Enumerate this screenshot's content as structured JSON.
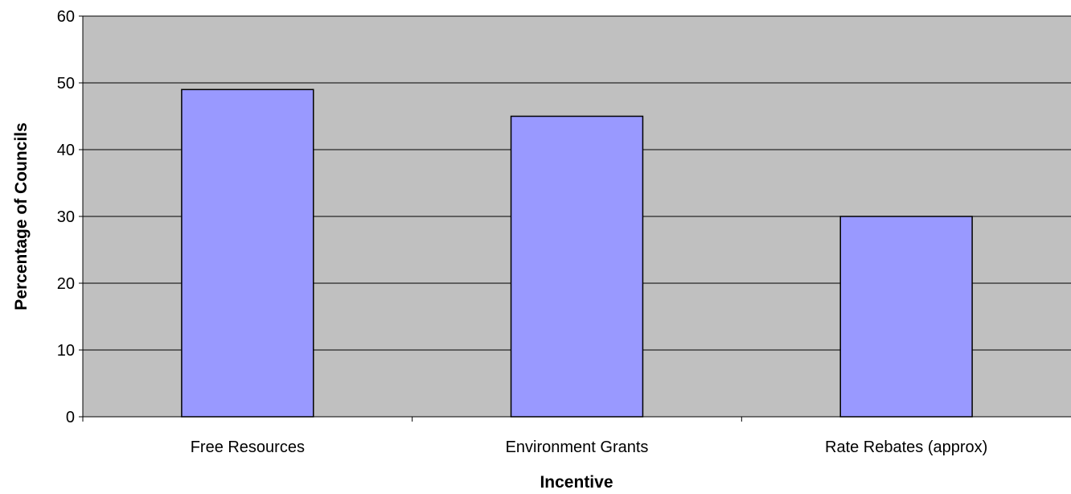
{
  "chart_data": {
    "type": "bar",
    "title": "",
    "xlabel": "Incentive",
    "ylabel": "Percentage of Councils",
    "categories": [
      "Free Resources",
      "Environment Grants",
      "Rate Rebates (approx)"
    ],
    "values": [
      49,
      45,
      30
    ],
    "ylim": [
      0,
      60
    ],
    "yticks": [
      0,
      10,
      20,
      30,
      40,
      50,
      60
    ],
    "grid": true,
    "legend": "none",
    "colors": {
      "plot_background": "#c0c0c0",
      "bar_fill": "#9999ff",
      "bar_stroke": "#000000",
      "gridline": "#000000"
    }
  }
}
